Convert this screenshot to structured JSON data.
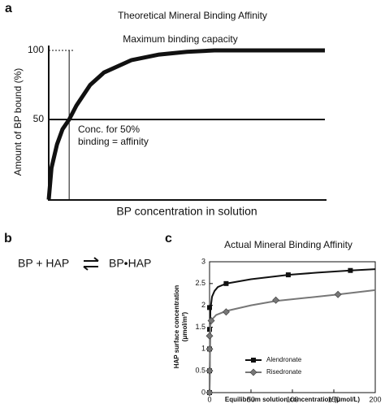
{
  "chart_data": [
    {
      "type": "line",
      "panel_label": "a",
      "title": "Theoretical Mineral Binding Affinity",
      "y_label": "Amount of BP bound (%)",
      "x_label": "BP concentration in solution",
      "annotations": {
        "max": "Maximum binding capacity",
        "half": [
          "Conc. for 50%",
          "binding = affinity"
        ]
      },
      "half_x": 0.74,
      "x": [
        0,
        0.1,
        0.3,
        0.5,
        0.74,
        1,
        1.5,
        2,
        3,
        4,
        5,
        6,
        8,
        10
      ],
      "values": [
        -8,
        15,
        32,
        43,
        50,
        60,
        75,
        84,
        93,
        97,
        99,
        100,
        100,
        100
      ],
      "color": "#111111",
      "xlim": [
        0,
        10
      ],
      "ylim": [
        -8,
        102
      ],
      "yticks": [
        100,
        50
      ]
    },
    {
      "type": "scatter",
      "panel_label": "c",
      "title": "Actual Mineral Binding Affinity",
      "y_label": [
        "HAP surface concentration",
        "(μmol/m²)"
      ],
      "x_label": "Equilibrium solution concentration (μmol/L)",
      "xlim": [
        0,
        200
      ],
      "ylim": [
        0,
        3
      ],
      "xticks": [
        0,
        50,
        100,
        150,
        200
      ],
      "yticks": [
        0,
        0.5,
        1,
        1.5,
        2,
        2.5,
        3
      ],
      "series": [
        {
          "name": "Alendronate",
          "color": "#111111",
          "marker": "square",
          "x": [
            0,
            0,
            0,
            0,
            0,
            20,
            95,
            170
          ],
          "values": [
            0,
            0.5,
            1,
            1.45,
            1.95,
            2.5,
            2.7,
            2.8
          ],
          "line_x": [
            0,
            1,
            3,
            6,
            10,
            20,
            50,
            95,
            130,
            170,
            200
          ],
          "line_values": [
            0,
            1.9,
            2.2,
            2.33,
            2.42,
            2.5,
            2.6,
            2.7,
            2.75,
            2.8,
            2.83
          ]
        },
        {
          "name": "Risedronate",
          "color": "#777777",
          "marker": "diamond",
          "x": [
            0,
            0,
            0,
            0,
            2,
            20,
            80,
            155
          ],
          "values": [
            0,
            0.5,
            1,
            1.3,
            1.65,
            1.85,
            2.12,
            2.25
          ],
          "line_x": [
            0,
            1,
            3,
            8,
            20,
            50,
            80,
            120,
            155,
            200
          ],
          "line_values": [
            0,
            1.55,
            1.68,
            1.78,
            1.87,
            2.0,
            2.1,
            2.18,
            2.25,
            2.35
          ]
        }
      ]
    }
  ],
  "scheme": {
    "panel_label": "b",
    "reactants": "BP + HAP",
    "product": "BP•HAP"
  }
}
